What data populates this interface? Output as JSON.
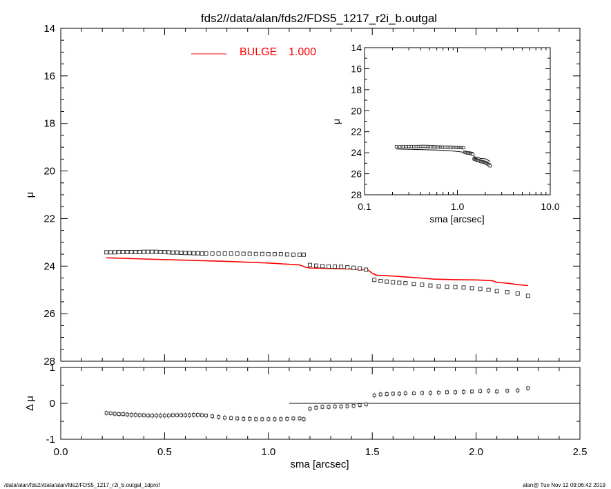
{
  "chart_data": [
    {
      "name": "main-profile",
      "type": "scatter",
      "title": "fds2//data/alan/fds2/FDS5_1217_r2i_b.outgal",
      "xlabel": "",
      "ylabel": "μ",
      "xlim": [
        0.0,
        2.5
      ],
      "ylim": [
        28,
        14
      ],
      "y_ticks": [
        "14",
        "16",
        "18",
        "20",
        "22",
        "24",
        "26",
        "28"
      ],
      "legend": {
        "label": "BULGE",
        "value": "1.000",
        "color": "#ff0000",
        "placement": "top-left"
      },
      "series": [
        {
          "name": "data",
          "marker": "square",
          "x": [
            0.22,
            0.24,
            0.26,
            0.28,
            0.3,
            0.32,
            0.34,
            0.36,
            0.38,
            0.4,
            0.42,
            0.44,
            0.46,
            0.48,
            0.5,
            0.52,
            0.54,
            0.56,
            0.58,
            0.6,
            0.62,
            0.64,
            0.66,
            0.68,
            0.7,
            0.73,
            0.76,
            0.79,
            0.82,
            0.85,
            0.88,
            0.91,
            0.94,
            0.97,
            1.0,
            1.03,
            1.06,
            1.09,
            1.12,
            1.15,
            1.17,
            1.2,
            1.23,
            1.26,
            1.29,
            1.32,
            1.35,
            1.38,
            1.41,
            1.44,
            1.47,
            1.51,
            1.54,
            1.57,
            1.6,
            1.63,
            1.66,
            1.7,
            1.74,
            1.78,
            1.82,
            1.86,
            1.9,
            1.94,
            1.98,
            2.02,
            2.06,
            2.1,
            2.15,
            2.2,
            2.25
          ],
          "y": [
            23.42,
            23.42,
            23.42,
            23.41,
            23.41,
            23.41,
            23.41,
            23.41,
            23.41,
            23.4,
            23.4,
            23.4,
            23.4,
            23.41,
            23.41,
            23.42,
            23.43,
            23.43,
            23.44,
            23.45,
            23.45,
            23.46,
            23.46,
            23.47,
            23.47,
            23.47,
            23.47,
            23.47,
            23.47,
            23.47,
            23.48,
            23.48,
            23.49,
            23.49,
            23.5,
            23.5,
            23.5,
            23.51,
            23.52,
            23.52,
            23.52,
            23.95,
            23.98,
            24.0,
            24.02,
            24.02,
            24.03,
            24.05,
            24.07,
            24.1,
            24.15,
            24.58,
            24.63,
            24.65,
            24.68,
            24.7,
            24.72,
            24.75,
            24.78,
            24.82,
            24.85,
            24.87,
            24.88,
            24.9,
            24.93,
            24.96,
            25.0,
            25.05,
            25.1,
            25.15,
            25.25
          ]
        },
        {
          "name": "BULGE",
          "color": "#ff0000",
          "marker": "line",
          "x": [
            0.22,
            0.4,
            0.6,
            0.8,
            1.0,
            1.15,
            1.18,
            1.2,
            1.3,
            1.4,
            1.48,
            1.5,
            1.52,
            1.6,
            1.7,
            1.8,
            1.9,
            2.0,
            2.05,
            2.08,
            2.1,
            2.15,
            2.2,
            2.25
          ],
          "y": [
            23.65,
            23.7,
            23.75,
            23.8,
            23.87,
            23.95,
            24.05,
            24.08,
            24.1,
            24.12,
            24.17,
            24.3,
            24.38,
            24.42,
            24.48,
            24.55,
            24.57,
            24.58,
            24.6,
            24.62,
            24.68,
            24.72,
            24.78,
            24.82
          ]
        }
      ]
    },
    {
      "name": "residuals",
      "type": "scatter",
      "xlabel": "sma [arcsec]",
      "ylabel": "Δ μ",
      "xlim": [
        0.0,
        2.5
      ],
      "ylim": [
        -1,
        1
      ],
      "x_ticks": [
        "0.0",
        "0.5",
        "1.0",
        "1.5",
        "2.0",
        "2.5"
      ],
      "y_ticks": [
        "1",
        "0",
        "-1"
      ],
      "reference_line": {
        "y": 0,
        "x_from": 1.1,
        "x_to": 2.5
      },
      "series": [
        {
          "name": "residual",
          "marker": "diamond",
          "x": [
            0.22,
            0.24,
            0.26,
            0.28,
            0.3,
            0.32,
            0.34,
            0.36,
            0.38,
            0.4,
            0.42,
            0.44,
            0.46,
            0.48,
            0.5,
            0.52,
            0.54,
            0.56,
            0.58,
            0.6,
            0.62,
            0.64,
            0.66,
            0.68,
            0.7,
            0.73,
            0.76,
            0.79,
            0.82,
            0.85,
            0.88,
            0.91,
            0.94,
            0.97,
            1.0,
            1.03,
            1.06,
            1.09,
            1.12,
            1.15,
            1.17,
            1.2,
            1.23,
            1.26,
            1.29,
            1.32,
            1.35,
            1.38,
            1.41,
            1.44,
            1.47,
            1.51,
            1.54,
            1.57,
            1.6,
            1.63,
            1.66,
            1.7,
            1.74,
            1.78,
            1.82,
            1.86,
            1.9,
            1.94,
            1.98,
            2.02,
            2.06,
            2.1,
            2.15,
            2.2,
            2.25
          ],
          "y": [
            -0.27,
            -0.28,
            -0.29,
            -0.3,
            -0.3,
            -0.31,
            -0.32,
            -0.32,
            -0.33,
            -0.33,
            -0.34,
            -0.34,
            -0.34,
            -0.34,
            -0.34,
            -0.34,
            -0.33,
            -0.33,
            -0.33,
            -0.33,
            -0.33,
            -0.32,
            -0.32,
            -0.33,
            -0.34,
            -0.36,
            -0.38,
            -0.4,
            -0.41,
            -0.42,
            -0.43,
            -0.43,
            -0.44,
            -0.44,
            -0.44,
            -0.44,
            -0.44,
            -0.43,
            -0.42,
            -0.42,
            -0.44,
            -0.15,
            -0.12,
            -0.1,
            -0.1,
            -0.09,
            -0.09,
            -0.08,
            -0.07,
            -0.05,
            -0.03,
            0.22,
            0.25,
            0.26,
            0.27,
            0.27,
            0.28,
            0.28,
            0.29,
            0.29,
            0.3,
            0.31,
            0.31,
            0.32,
            0.33,
            0.34,
            0.35,
            0.33,
            0.35,
            0.36,
            0.42
          ]
        }
      ]
    },
    {
      "name": "inset-log",
      "type": "scatter",
      "xlabel": "sma [arcsec]",
      "ylabel": "μ",
      "x_scale": "log",
      "xlim": [
        0.1,
        10.0
      ],
      "ylim": [
        28,
        14
      ],
      "x_ticks": [
        "0.1",
        "1.0",
        "10.0"
      ],
      "y_ticks": [
        "14",
        "16",
        "18",
        "20",
        "22",
        "24",
        "26",
        "28"
      ],
      "series": [
        {
          "name": "data",
          "ref": "main-profile.data"
        },
        {
          "name": "model",
          "ref": "main-profile.BULGE",
          "color": "#000000"
        }
      ]
    }
  ],
  "footer": {
    "left": "/data/alan/fds2//data/alan/fds2/FDS5_1217_r2i_b.outgal_1dprof",
    "right": "alan@  Tue Nov 12 09:06:42 2019"
  }
}
